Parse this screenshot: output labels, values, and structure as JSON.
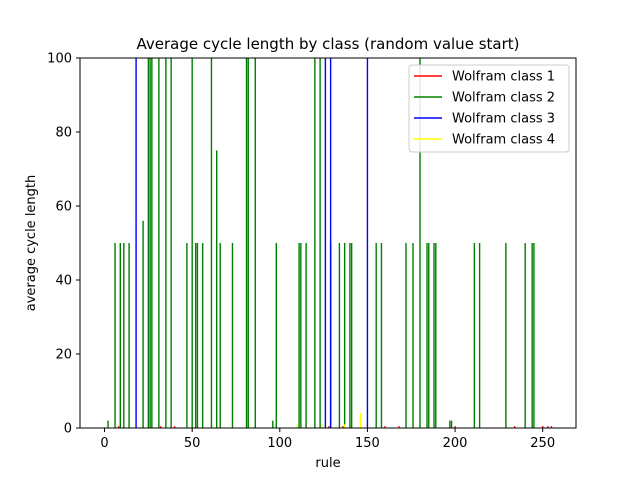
{
  "chart_data": {
    "type": "bar",
    "title": "Average cycle length by class (random value start)",
    "xlabel": "rule",
    "ylabel": "average cycle length",
    "xlim": [
      -14,
      269
    ],
    "ylim": [
      0,
      100
    ],
    "xticks": [
      0,
      50,
      100,
      150,
      200,
      250
    ],
    "yticks": [
      0,
      20,
      40,
      60,
      80,
      100
    ],
    "grid": false,
    "legend_position": "top-right",
    "series": [
      {
        "name": "Wolfram class 1",
        "color": "#ff0000",
        "x": [
          8,
          32,
          40,
          128,
          136,
          160,
          168,
          200,
          234,
          250,
          253,
          255
        ],
        "values": [
          0.5,
          0.5,
          0.5,
          0.5,
          0.5,
          0.5,
          0.5,
          0.5,
          0.5,
          0.5,
          0.5,
          0.5
        ]
      },
      {
        "name": "Wolfram class 2",
        "color": "#008000",
        "x": [
          2,
          6,
          9,
          11,
          14,
          22,
          25,
          26,
          27,
          31,
          35,
          38,
          47,
          50,
          52,
          53,
          56,
          61,
          64,
          66,
          73,
          81,
          82,
          86,
          96,
          98,
          111,
          112,
          115,
          120,
          123,
          129,
          134,
          137,
          140,
          141,
          155,
          158,
          172,
          176,
          180,
          184,
          185,
          188,
          189,
          197,
          198,
          211,
          214,
          229,
          240,
          244,
          245
        ],
        "values": [
          2,
          50,
          50,
          50,
          50,
          56,
          100,
          100,
          100,
          100,
          100,
          100,
          50,
          100,
          50,
          50,
          50,
          100,
          75,
          50,
          50,
          100,
          100,
          100,
          2,
          50,
          50,
          50,
          50,
          100,
          100,
          50,
          50,
          50,
          50,
          50,
          50,
          50,
          50,
          50,
          100,
          50,
          50,
          50,
          50,
          2,
          2,
          50,
          50,
          50,
          50,
          50,
          50
        ]
      },
      {
        "name": "Wolfram class 3",
        "color": "#0000ff",
        "x": [
          18,
          126,
          129,
          150
        ],
        "values": [
          100,
          100,
          100,
          100
        ]
      },
      {
        "name": "Wolfram class 4",
        "color": "#ffff00",
        "x": [
          110,
          124,
          137,
          146
        ],
        "values": [
          1,
          1,
          1,
          4
        ]
      }
    ]
  }
}
